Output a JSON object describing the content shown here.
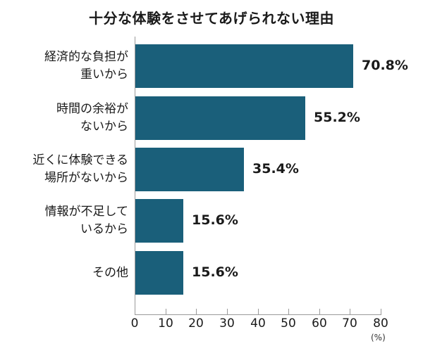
{
  "chart_data": {
    "type": "bar",
    "orientation": "horizontal",
    "title": "十分な体験をさせてあげられない理由",
    "categories": [
      "経済的な負担が重いから",
      "時間の余裕がないから",
      "近くに体験できる場所がないから",
      "情報が不足しているから",
      "その他"
    ],
    "category_lines": [
      [
        "経済的な負担が",
        "重いから"
      ],
      [
        "時間の余裕が",
        "ないから"
      ],
      [
        "近くに体験できる",
        "場所がないから"
      ],
      [
        "情報が不足して",
        "いるから"
      ],
      [
        "その他"
      ]
    ],
    "values": [
      70.8,
      55.2,
      35.4,
      15.6,
      15.6
    ],
    "value_labels": [
      "70.8%",
      "55.2%",
      "35.4%",
      "15.6%",
      "15.6%"
    ],
    "xlabel": "(%)",
    "ylabel": "",
    "xlim": [
      0,
      80
    ],
    "xticks": [
      "0",
      "10",
      "20",
      "30",
      "40",
      "50",
      "60",
      "70",
      "80"
    ],
    "grid": false,
    "legend": null,
    "bar_color": "#1a5f7a"
  }
}
